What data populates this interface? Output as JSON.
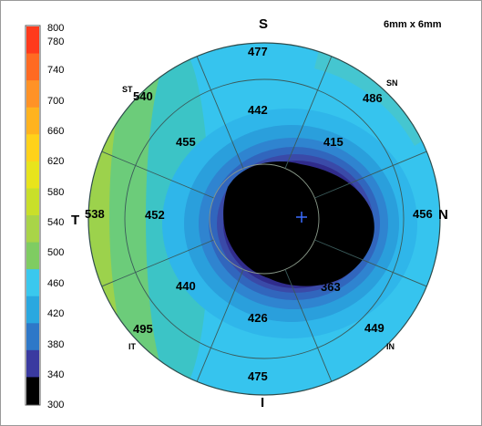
{
  "header": {
    "scan_size": "6mm x 6mm"
  },
  "color_scale": {
    "labels": [
      "800",
      "780",
      "740",
      "700",
      "660",
      "620",
      "580",
      "540",
      "500",
      "460",
      "420",
      "380",
      "340",
      "300"
    ],
    "colors": [
      "#ff3a1c",
      "#ff6a22",
      "#ff9226",
      "#ffb31e",
      "#ffd21a",
      "#e8e41c",
      "#c9df2a",
      "#a9d448",
      "#7fcc62",
      "#3ac8ee",
      "#2aa8e0",
      "#2e78c8",
      "#3a3aa0",
      "#000000"
    ]
  },
  "map": {
    "directions": {
      "superior": "S",
      "inferior": "I",
      "temporal": "T",
      "nasal": "N"
    },
    "quadrants": {
      "superior_temporal": "ST",
      "superior_nasal": "SN",
      "inferior_temporal": "IT",
      "inferior_nasal": "IN",
      "center": "T"
    },
    "sectors": {
      "outer_superior": "477",
      "outer_superior_nasal": "486",
      "outer_nasal": "456",
      "outer_inferior_nasal": "449",
      "outer_inferior": "475",
      "outer_inferior_temporal": "495",
      "outer_temporal": "538",
      "outer_superior_temporal": "540",
      "inner_superior": "442",
      "inner_superior_nasal": "415",
      "inner_temporal": "452",
      "inner_superior_temporal": "455",
      "inner_inferior_temporal": "440",
      "inner_inferior": "426",
      "inner_inferior_nasal": "363"
    }
  }
}
